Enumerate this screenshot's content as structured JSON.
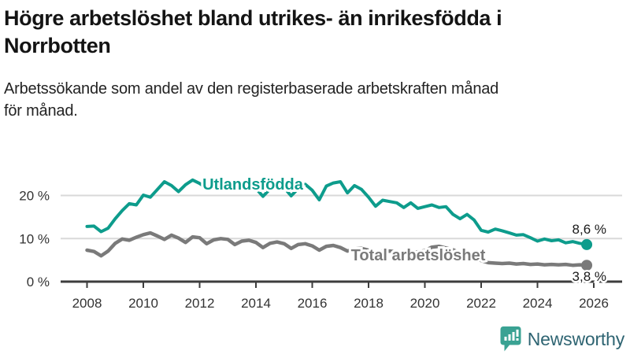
{
  "header": {
    "title_line1": "Högre arbetslöshet bland utrikes- än inrikesfödda i",
    "title_line2": "Norrbotten",
    "subtitle_line1": "Arbetssökande som andel av den registerbaserade arbetskraften månad",
    "subtitle_line2": "för månad."
  },
  "footer": {
    "brand": "Newsworthy",
    "logo_icon": "speech-bubble-bar-chart-icon"
  },
  "colors": {
    "series_foreign_born": "#0d9c8c",
    "series_total": "#7a7a7a",
    "axis": "#3d3d3d",
    "gridline": "#d9d9d9",
    "tick_label": "#333333",
    "value_label": "#1a1a1a",
    "logo_icon": "#3aa293",
    "logo_text": "#2e6472"
  },
  "chart_data": {
    "type": "line",
    "title": "Högre arbetslöshet bland utrikes- än inrikesfödda i Norrbotten",
    "subtitle": "Arbetssökande som andel av den registerbaserade arbetskraften månad för månad.",
    "ylabel": "",
    "xlabel": "",
    "ylim": [
      0,
      25
    ],
    "xlim": [
      2008,
      2026
    ],
    "grid": "horizontal",
    "legend_position": "inline-labels",
    "yticks": [
      {
        "value": 0,
        "label": "0 %"
      },
      {
        "value": 10,
        "label": "10 %"
      },
      {
        "value": 20,
        "label": "20 %"
      }
    ],
    "xticks": [
      {
        "value": 2008,
        "label": "2008"
      },
      {
        "value": 2010,
        "label": "2010"
      },
      {
        "value": 2012,
        "label": "2012"
      },
      {
        "value": 2014,
        "label": "2014"
      },
      {
        "value": 2016,
        "label": "2016"
      },
      {
        "value": 2018,
        "label": "2018"
      },
      {
        "value": 2020,
        "label": "2020"
      },
      {
        "value": 2022,
        "label": "2022"
      },
      {
        "value": 2024,
        "label": "2024"
      },
      {
        "value": 2026,
        "label": "2026"
      }
    ],
    "x": [
      2008,
      2008.25,
      2008.5,
      2008.75,
      2009,
      2009.25,
      2009.5,
      2009.75,
      2010,
      2010.25,
      2010.5,
      2010.75,
      2011,
      2011.25,
      2011.5,
      2011.75,
      2012,
      2012.25,
      2012.5,
      2012.75,
      2013,
      2013.25,
      2013.5,
      2013.75,
      2014,
      2014.25,
      2014.5,
      2014.75,
      2015,
      2015.25,
      2015.5,
      2015.75,
      2016,
      2016.25,
      2016.5,
      2016.75,
      2017,
      2017.25,
      2017.5,
      2017.75,
      2018,
      2018.25,
      2018.5,
      2018.75,
      2019,
      2019.25,
      2019.5,
      2019.75,
      2020,
      2020.25,
      2020.5,
      2020.75,
      2021,
      2021.25,
      2021.5,
      2021.75,
      2022,
      2022.25,
      2022.5,
      2022.75,
      2023,
      2023.25,
      2023.5,
      2023.75,
      2024,
      2024.25,
      2024.5,
      2024.75,
      2025,
      2025.25,
      2025.5,
      2025.75
    ],
    "series": [
      {
        "name": "Utlandsfödda",
        "color": "#0d9c8c",
        "end_value": 8.6,
        "end_label": "8,6 %",
        "values": [
          12.8,
          12.9,
          11.6,
          12.4,
          14.6,
          16.5,
          18.1,
          17.8,
          20.1,
          19.6,
          21.4,
          23.2,
          22.3,
          20.9,
          22.5,
          23.6,
          22.8,
          21.7,
          22.9,
          23.4,
          22.4,
          21.2,
          22.3,
          22.9,
          21.6,
          19.8,
          21.5,
          22.4,
          21.8,
          19.9,
          21.6,
          22.6,
          21.2,
          19.0,
          22.2,
          22.9,
          23.2,
          20.6,
          22.3,
          21.4,
          19.6,
          17.5,
          18.9,
          18.6,
          18.3,
          17.2,
          18.3,
          17.0,
          17.4,
          17.8,
          17.2,
          17.4,
          15.6,
          14.6,
          15.6,
          14.3,
          11.9,
          11.5,
          12.2,
          11.8,
          11.3,
          10.8,
          10.9,
          10.2,
          9.4,
          9.9,
          9.5,
          9.7,
          9.0,
          9.3,
          8.9,
          8.6
        ]
      },
      {
        "name": "Total arbetslöshet",
        "color": "#7a7a7a",
        "end_value": 3.8,
        "end_label": "3,8 %",
        "values": [
          7.3,
          7.0,
          6.0,
          7.1,
          8.9,
          9.9,
          9.6,
          10.3,
          10.9,
          11.3,
          10.6,
          9.8,
          10.8,
          10.1,
          9.1,
          10.4,
          10.2,
          8.8,
          9.7,
          10.0,
          9.8,
          8.6,
          9.4,
          9.6,
          9.1,
          7.9,
          8.9,
          9.2,
          8.8,
          7.7,
          8.6,
          8.8,
          8.3,
          7.3,
          8.2,
          8.4,
          7.9,
          7.1,
          7.6,
          7.7,
          7.3,
          6.6,
          7.0,
          7.1,
          6.9,
          6.3,
          6.7,
          6.9,
          7.2,
          8.0,
          8.2,
          7.8,
          7.4,
          6.6,
          6.3,
          5.6,
          4.9,
          4.4,
          4.3,
          4.2,
          4.3,
          4.1,
          4.2,
          4.0,
          4.1,
          3.9,
          4.0,
          3.9,
          4.0,
          3.8,
          3.9,
          3.8
        ]
      }
    ]
  }
}
